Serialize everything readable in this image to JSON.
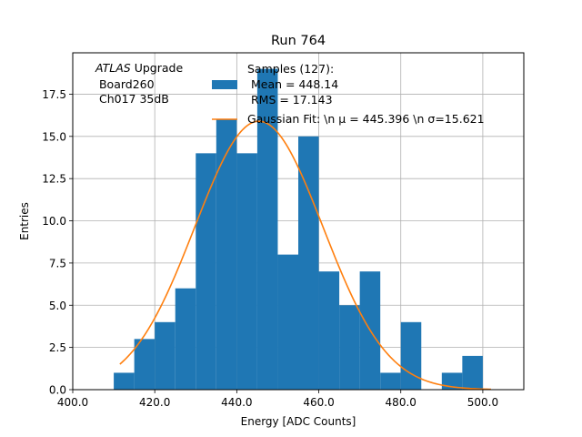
{
  "chart_data": {
    "type": "bar",
    "title": "Run 764",
    "xlabel": "Energy [ADC Counts]",
    "ylabel": "Entries",
    "xlim": [
      400,
      510
    ],
    "ylim": [
      0,
      19.95
    ],
    "xticks": [
      400,
      420,
      440,
      460,
      480,
      500
    ],
    "xtick_labels": [
      "400.0",
      "420.0",
      "440.0",
      "460.0",
      "480.0",
      "500.0"
    ],
    "yticks": [
      0,
      2.5,
      5,
      7.5,
      10,
      12.5,
      15,
      17.5
    ],
    "ytick_labels": [
      "0.0",
      "2.5",
      "5.0",
      "7.5",
      "10.0",
      "12.5",
      "15.0",
      "17.5"
    ],
    "grid": true,
    "bin_width": 5,
    "bin_edges": [
      410,
      415,
      420,
      425,
      430,
      435,
      440,
      445,
      450,
      455,
      460,
      465,
      470,
      475,
      480,
      485,
      490,
      495
    ],
    "values": [
      1,
      3,
      4,
      6,
      14,
      16,
      14,
      19,
      8,
      15,
      7,
      5,
      7,
      1,
      4,
      0,
      1,
      2
    ],
    "series": [
      {
        "name": "Samples (127):\n Mean = 448.14\n RMS = 17.143",
        "kind": "histogram",
        "color": "#1f77b4"
      },
      {
        "name": "Gaussian Fit: \\n $\\mu$ = 445.396 \\n $\\sigma$=15.621",
        "kind": "line",
        "color": "#ff7f0e",
        "amplitude": 15.9,
        "mu": 445.396,
        "sigma": 15.621,
        "x_range": [
          411.5,
          502
        ]
      }
    ],
    "legend_location": "top-right",
    "legend_lines": {
      "hist": [
        "Samples (127):",
        " Mean = 448.14",
        " RMS = 17.143"
      ],
      "fit": "Gaussian Fit: \\n μ = 445.396 \\n σ=15.621"
    },
    "annotation": {
      "line1_italic": "ATLAS",
      "line1_rest": " Upgrade",
      "line2": " Board260",
      "line3": " Ch017 35dB"
    }
  }
}
